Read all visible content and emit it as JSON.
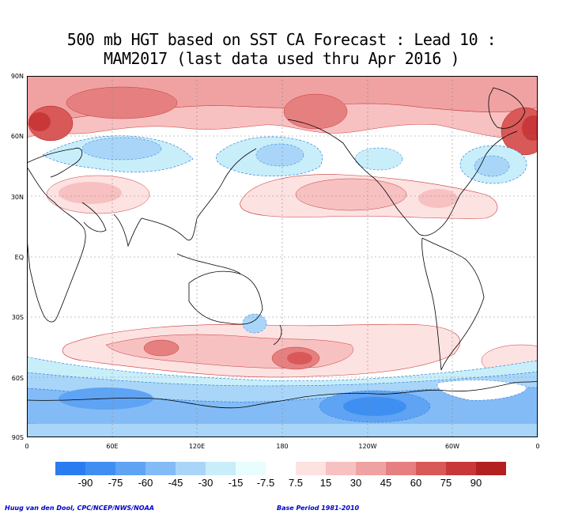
{
  "title": {
    "line1": "500 mb HGT based on SST CA Forecast : Lead 10 :",
    "line2": "MAM2017 (last data used thru Apr 2016 )"
  },
  "axes": {
    "lat_labels": [
      "90N",
      "60N",
      "30N",
      "EQ",
      "30S",
      "60S",
      "90S"
    ],
    "lon_labels": [
      "0",
      "60E",
      "120E",
      "180",
      "120W",
      "60W",
      "0"
    ]
  },
  "legend": {
    "labels": [
      "-90",
      "-75",
      "-60",
      "-45",
      "-30",
      "-15",
      "-7.5",
      "7.5",
      "15",
      "30",
      "45",
      "60",
      "75",
      "90"
    ],
    "colors": [
      "#2b7cf0",
      "#3f8ff2",
      "#5fa3f4",
      "#83bbf6",
      "#a9d6f8",
      "#c8eefa",
      "#e8fdfd",
      "#ffffff",
      "#fde2e2",
      "#f8c1c1",
      "#f0a2a2",
      "#e68080",
      "#d95858",
      "#c83838",
      "#b22020"
    ]
  },
  "footer": {
    "credit": "Huug van den Dool, CPC/NCEP/NWS/NOAA",
    "base_period": "Base Period 1981-2010"
  },
  "colors": {
    "land_outline": "#000000",
    "grid": "#888888"
  }
}
